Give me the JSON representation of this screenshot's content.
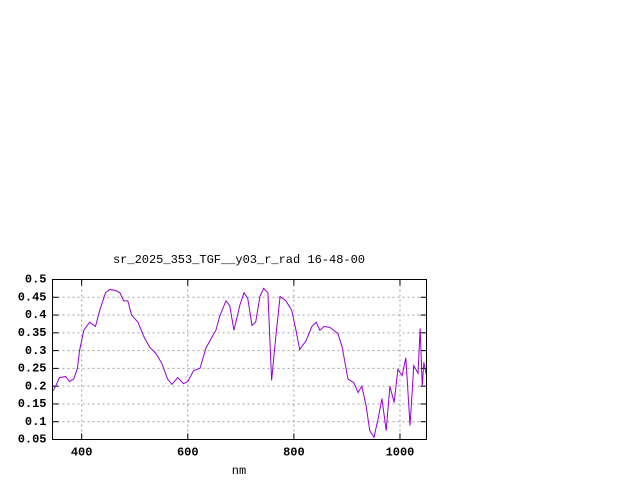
{
  "chart_data": {
    "type": "line",
    "title": "sr_2025_353_TGF__y03_r_rad 16-48-00",
    "x_label": "nm",
    "xlim": [
      345,
      1050
    ],
    "ylim": [
      0.05,
      0.5
    ],
    "xticks": [
      400,
      600,
      800,
      1000
    ],
    "yticks": [
      0.05,
      0.1,
      0.15,
      0.2,
      0.25,
      0.3,
      0.35,
      0.4,
      0.45,
      0.5
    ],
    "grid": true,
    "series": [
      {
        "color": "#9400d3",
        "x": [
          345,
          351,
          358,
          370,
          377,
          385,
          392,
          396,
          404,
          415,
          426,
          434,
          445,
          453,
          464,
          472,
          479,
          487,
          494,
          506,
          517,
          528,
          540,
          551,
          562,
          570,
          581,
          592,
          600,
          611,
          623,
          634,
          645,
          653,
          660,
          672,
          679,
          687,
          698,
          706,
          713,
          721,
          728,
          736,
          743,
          751,
          758,
          766,
          774,
          785,
          796,
          804,
          811,
          823,
          834,
          842,
          849,
          857,
          868,
          875,
          883,
          891,
          902,
          913,
          921,
          928,
          936,
          943,
          951,
          958,
          966,
          974,
          981,
          989,
          996,
          1004,
          1011,
          1019,
          1026,
          1034,
          1038,
          1042,
          1045,
          1050
        ],
        "values": [
          0.185,
          0.2,
          0.224,
          0.227,
          0.213,
          0.22,
          0.25,
          0.3,
          0.357,
          0.38,
          0.368,
          0.413,
          0.463,
          0.472,
          0.469,
          0.463,
          0.44,
          0.44,
          0.4,
          0.38,
          0.34,
          0.31,
          0.292,
          0.264,
          0.22,
          0.205,
          0.224,
          0.207,
          0.213,
          0.244,
          0.25,
          0.306,
          0.337,
          0.357,
          0.396,
          0.44,
          0.427,
          0.357,
          0.427,
          0.463,
          0.447,
          0.371,
          0.38,
          0.452,
          0.475,
          0.463,
          0.216,
          0.34,
          0.452,
          0.44,
          0.413,
          0.357,
          0.303,
          0.328,
          0.368,
          0.38,
          0.357,
          0.368,
          0.365,
          0.357,
          0.348,
          0.31,
          0.22,
          0.21,
          0.182,
          0.2,
          0.146,
          0.075,
          0.056,
          0.103,
          0.165,
          0.075,
          0.2,
          0.154,
          0.247,
          0.23,
          0.28,
          0.089,
          0.258,
          0.236,
          0.362,
          0.2,
          0.267,
          0.23
        ]
      }
    ]
  }
}
